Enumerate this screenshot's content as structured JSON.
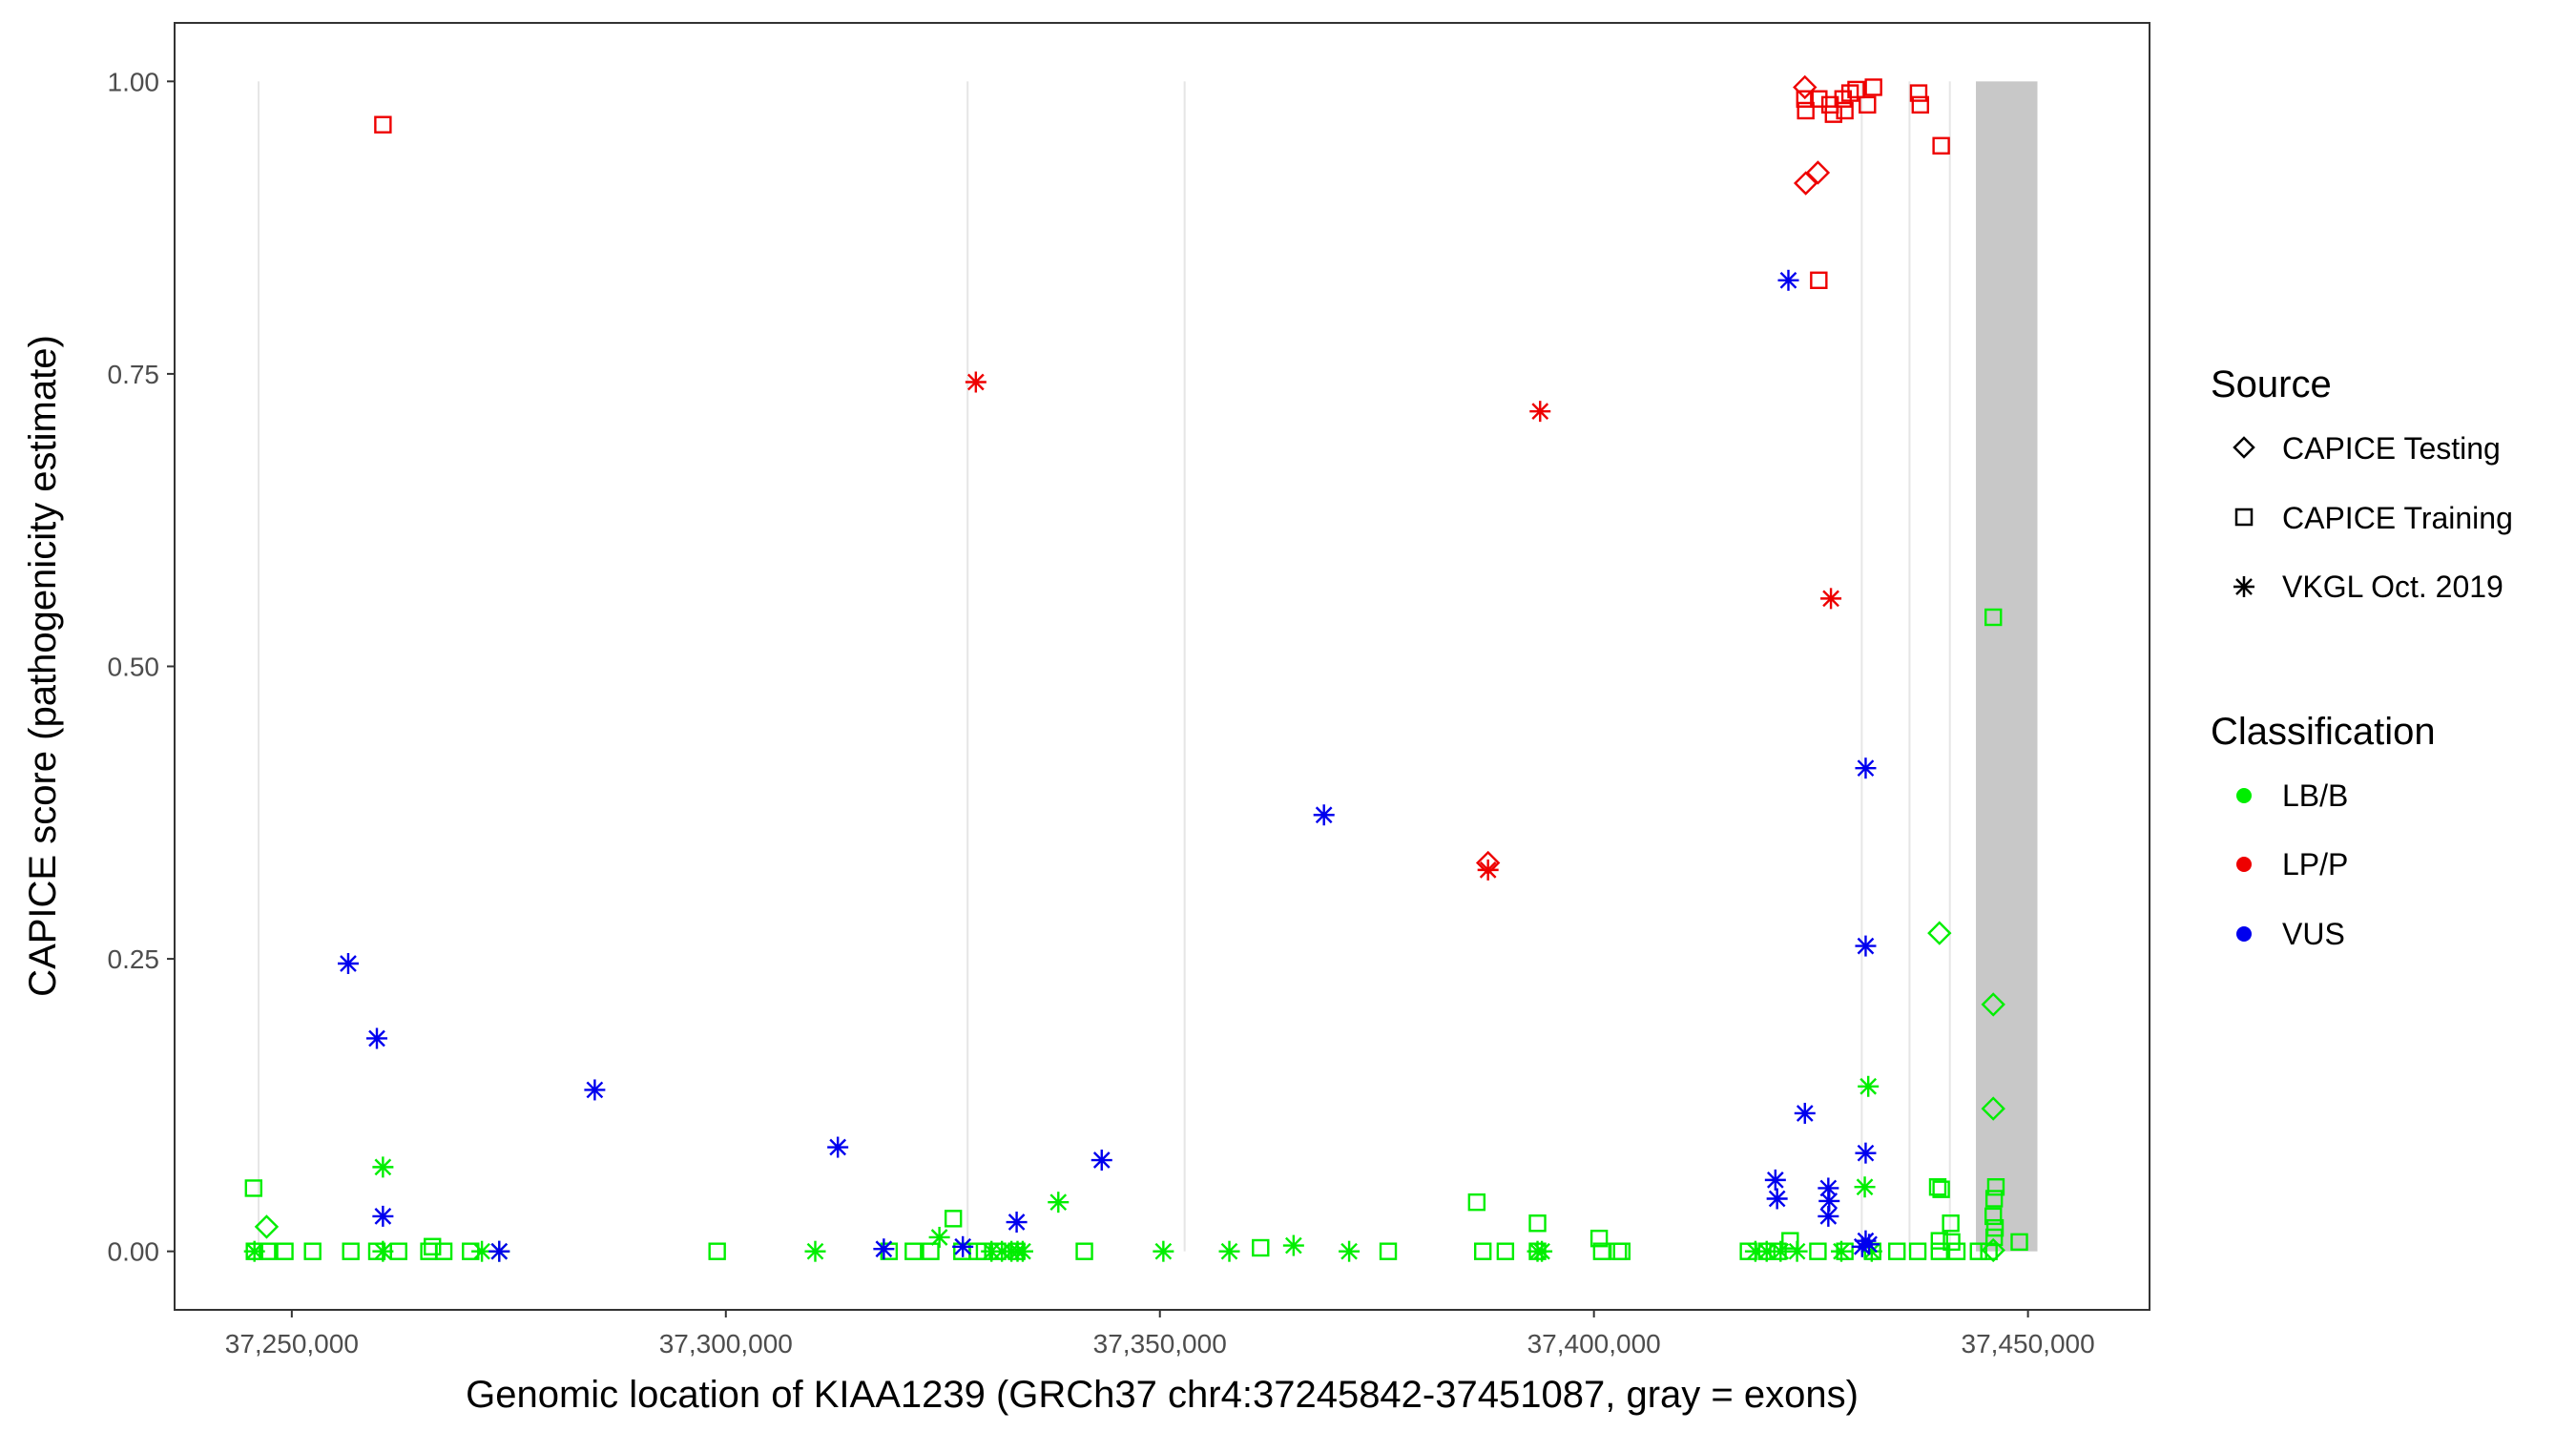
{
  "chart_data": {
    "type": "scatter",
    "xlabel": "Genomic location of KIAA1239 (GRCh37 chr4:37245842-37451087, gray = exons)",
    "ylabel": "CAPICE score (pathogenicity estimate)",
    "xlim": [
      37236500,
      37464000
    ],
    "ylim": [
      -0.05,
      1.05
    ],
    "x_ticks": [
      37250000,
      37300000,
      37350000,
      37400000,
      37450000
    ],
    "x_tick_labels": [
      "37,250,000",
      "37,300,000",
      "37,350,000",
      "37,400,000",
      "37,450,000"
    ],
    "y_ticks": [
      0,
      0.25,
      0.5,
      0.75,
      1.0
    ],
    "y_tick_labels": [
      "0.00",
      "0.25",
      "0.50",
      "0.75",
      "1.00"
    ],
    "exons": [
      {
        "start": 37245850,
        "end": 37246500
      },
      {
        "start": 37327800,
        "end": 37327900
      },
      {
        "start": 37352800,
        "end": 37352900
      },
      {
        "start": 37430800,
        "end": 37430900
      },
      {
        "start": 37436300,
        "end": 37436400
      },
      {
        "start": 37440700,
        "end": 37441300
      },
      {
        "start": 37444000,
        "end": 37451087
      }
    ],
    "colors": {
      "LB/B": "#00ee00",
      "LP/P": "#ee0000",
      "VUS": "#0000ee",
      "exon": "#c8c8c8",
      "gridline": "#e6e6e6"
    },
    "legend": {
      "source_title": "Source",
      "sources": [
        {
          "label": "CAPICE Testing",
          "shape": "diamond"
        },
        {
          "label": "CAPICE Training",
          "shape": "square"
        },
        {
          "label": "VKGL Oct. 2019",
          "shape": "asterisk"
        }
      ],
      "classification_title": "Classification",
      "classifications": [
        {
          "label": "LB/B",
          "color": "#00ee00"
        },
        {
          "label": "LP/P",
          "color": "#ee0000"
        },
        {
          "label": "VUS",
          "color": "#0000ee"
        }
      ]
    },
    "series": [
      {
        "name": "LP/P - CAPICE Training",
        "source": "CAPICE Training",
        "class": "LP/P",
        "points": [
          [
            37260500,
            0.963
          ],
          [
            37424300,
            0.985
          ],
          [
            37424400,
            0.975
          ],
          [
            37425900,
            0.985
          ],
          [
            37427200,
            0.98
          ],
          [
            37427600,
            0.972
          ],
          [
            37428700,
            0.985
          ],
          [
            37428900,
            0.975
          ],
          [
            37429500,
            0.99
          ],
          [
            37430200,
            0.993
          ],
          [
            37431500,
            0.98
          ],
          [
            37432200,
            0.995
          ],
          [
            37437400,
            0.99
          ],
          [
            37437600,
            0.98
          ],
          [
            37440000,
            0.945
          ],
          [
            37425900,
            0.83
          ]
        ]
      },
      {
        "name": "LP/P - CAPICE Testing",
        "source": "CAPICE Testing",
        "class": "LP/P",
        "points": [
          [
            37424300,
            0.995
          ],
          [
            37424400,
            0.913
          ],
          [
            37425800,
            0.922
          ],
          [
            37387800,
            0.332
          ]
        ]
      },
      {
        "name": "LP/P - VKGL",
        "source": "VKGL Oct. 2019",
        "class": "LP/P",
        "points": [
          [
            37328800,
            0.743
          ],
          [
            37393800,
            0.718
          ],
          [
            37427300,
            0.558
          ],
          [
            37387800,
            0.326
          ]
        ]
      },
      {
        "name": "VUS - VKGL",
        "source": "VKGL Oct. 2019",
        "class": "VUS",
        "points": [
          [
            37422400,
            0.83
          ],
          [
            37368900,
            0.373
          ],
          [
            37431300,
            0.413
          ],
          [
            37431300,
            0.261
          ],
          [
            37256500,
            0.246
          ],
          [
            37259800,
            0.182
          ],
          [
            37284900,
            0.138
          ],
          [
            37424300,
            0.118
          ],
          [
            37312900,
            0.089
          ],
          [
            37431300,
            0.084
          ],
          [
            37343300,
            0.078
          ],
          [
            37420900,
            0.061
          ],
          [
            37427000,
            0.054
          ],
          [
            37421100,
            0.045
          ],
          [
            37427100,
            0.043
          ],
          [
            37427000,
            0.03
          ],
          [
            37260500,
            0.03
          ],
          [
            37333500,
            0.025
          ],
          [
            37431300,
            0.009
          ],
          [
            37431700,
            0.006
          ],
          [
            37430900,
            0.004
          ],
          [
            37318200,
            0.002
          ],
          [
            37327300,
            0.004
          ],
          [
            37273900,
            0.0
          ]
        ]
      },
      {
        "name": "LB/B - VKGL",
        "source": "VKGL Oct. 2019",
        "class": "LB/B",
        "points": [
          [
            37260500,
            0.072
          ],
          [
            37431600,
            0.141
          ],
          [
            37431200,
            0.055
          ],
          [
            37338300,
            0.042
          ],
          [
            37324600,
            0.012
          ],
          [
            37365400,
            0.005
          ],
          [
            37358000,
            0.0
          ],
          [
            37350400,
            0.0
          ],
          [
            37371800,
            0.0
          ],
          [
            37310300,
            0.0
          ],
          [
            37245700,
            0.0
          ],
          [
            37260500,
            0.0
          ],
          [
            37271900,
            0.0
          ],
          [
            37273900,
            0.0
          ],
          [
            37330600,
            0.0
          ],
          [
            37331800,
            0.0
          ],
          [
            37332900,
            0.0
          ],
          [
            37333600,
            0.0
          ],
          [
            37334200,
            0.0
          ],
          [
            37393500,
            0.0
          ],
          [
            37394000,
            0.0
          ],
          [
            37418600,
            0.0
          ],
          [
            37419900,
            0.0
          ],
          [
            37421500,
            0.0
          ],
          [
            37423400,
            0.0
          ],
          [
            37428500,
            0.0
          ],
          [
            37432000,
            0.0
          ]
        ]
      },
      {
        "name": "LB/B - CAPICE Testing",
        "source": "CAPICE Testing",
        "class": "LB/B",
        "points": [
          [
            37439800,
            0.272
          ],
          [
            37446000,
            0.211
          ],
          [
            37446000,
            0.122
          ],
          [
            37247100,
            0.021
          ],
          [
            37446000,
            0.001
          ]
        ]
      },
      {
        "name": "LB/B - CAPICE Training",
        "source": "CAPICE Training",
        "class": "LB/B",
        "points": [
          [
            37446000,
            0.542
          ],
          [
            37245600,
            0.054
          ],
          [
            37439600,
            0.055
          ],
          [
            37440000,
            0.053
          ],
          [
            37446300,
            0.055
          ],
          [
            37446100,
            0.045
          ],
          [
            37386500,
            0.042
          ],
          [
            37393500,
            0.024
          ],
          [
            37441100,
            0.024
          ],
          [
            37446000,
            0.03
          ],
          [
            37446200,
            0.02
          ],
          [
            37326200,
            0.028
          ],
          [
            37446100,
            0.012
          ],
          [
            37449000,
            0.008
          ],
          [
            37400600,
            0.011
          ],
          [
            37422600,
            0.009
          ],
          [
            37439800,
            0.009
          ],
          [
            37441200,
            0.008
          ],
          [
            37266200,
            0.004
          ],
          [
            37361600,
            0.003
          ],
          [
            37245700,
            0.0
          ],
          [
            37247200,
            0.0
          ],
          [
            37249200,
            0.0
          ],
          [
            37252400,
            0.0
          ],
          [
            37256800,
            0.0
          ],
          [
            37259800,
            0.0
          ],
          [
            37262300,
            0.0
          ],
          [
            37265800,
            0.0
          ],
          [
            37267500,
            0.0
          ],
          [
            37270600,
            0.0
          ],
          [
            37299000,
            0.0
          ],
          [
            37318800,
            0.0
          ],
          [
            37321600,
            0.0
          ],
          [
            37323600,
            0.0
          ],
          [
            37327200,
            0.0
          ],
          [
            37329000,
            0.0
          ],
          [
            37329800,
            0.0
          ],
          [
            37331300,
            0.0
          ],
          [
            37333500,
            0.0
          ],
          [
            37341300,
            0.0
          ],
          [
            37376300,
            0.0
          ],
          [
            37387200,
            0.0
          ],
          [
            37389800,
            0.0
          ],
          [
            37393500,
            0.0
          ],
          [
            37400900,
            0.0
          ],
          [
            37402800,
            0.0
          ],
          [
            37403200,
            0.0
          ],
          [
            37417800,
            0.0
          ],
          [
            37419900,
            0.0
          ],
          [
            37421200,
            0.0
          ],
          [
            37425800,
            0.0
          ],
          [
            37428900,
            0.0
          ],
          [
            37432100,
            0.0
          ],
          [
            37434900,
            0.0
          ],
          [
            37437300,
            0.0
          ],
          [
            37439800,
            0.0
          ],
          [
            37441800,
            0.0
          ],
          [
            37444300,
            0.0
          ],
          [
            37445500,
            0.0
          ]
        ]
      }
    ]
  }
}
